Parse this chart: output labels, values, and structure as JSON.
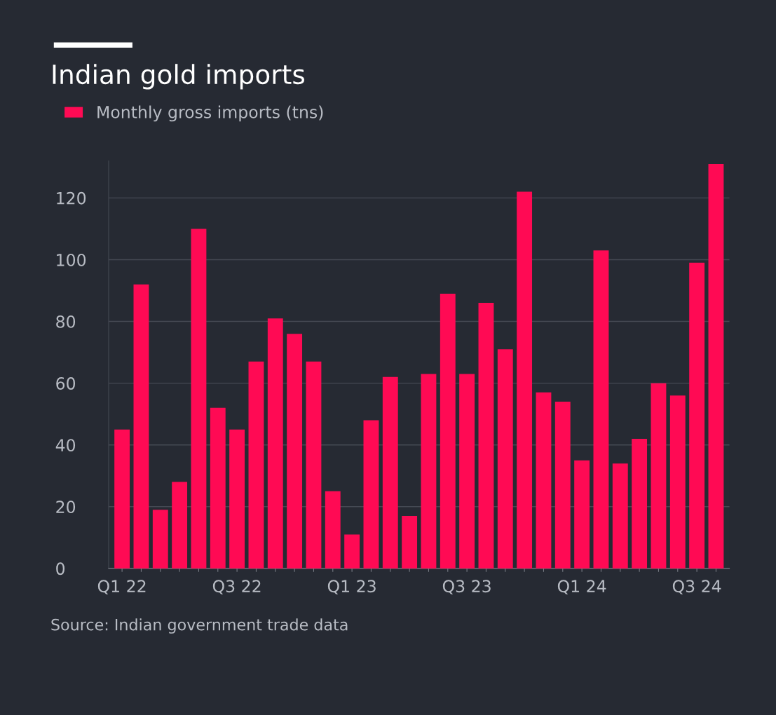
{
  "chart_data": {
    "type": "bar",
    "title": "Indian gold imports",
    "categories": [
      "Q1 22",
      null,
      null,
      null,
      null,
      null,
      "Q3 22",
      null,
      null,
      null,
      null,
      null,
      "Q1 23",
      null,
      null,
      null,
      null,
      null,
      "Q3 23",
      null,
      null,
      null,
      null,
      null,
      "Q1 24",
      null,
      null,
      null,
      null,
      null,
      "Q3 24",
      null
    ],
    "series": [
      {
        "name": "Monthly gross imports (tns)",
        "color": "#ff0a54",
        "values": [
          45,
          92,
          19,
          28,
          110,
          52,
          45,
          67,
          81,
          76,
          67,
          25,
          11,
          48,
          62,
          17,
          63,
          89,
          63,
          86,
          71,
          122,
          57,
          54,
          35,
          103,
          34,
          42,
          60,
          56,
          99,
          131
        ]
      }
    ],
    "ylim": [
      0,
      132
    ],
    "yticks": [
      0,
      20,
      40,
      60,
      80,
      100,
      120
    ],
    "grid": "y",
    "legend": "top left",
    "annotations": [
      "Source: Indian government trade data"
    ]
  }
}
